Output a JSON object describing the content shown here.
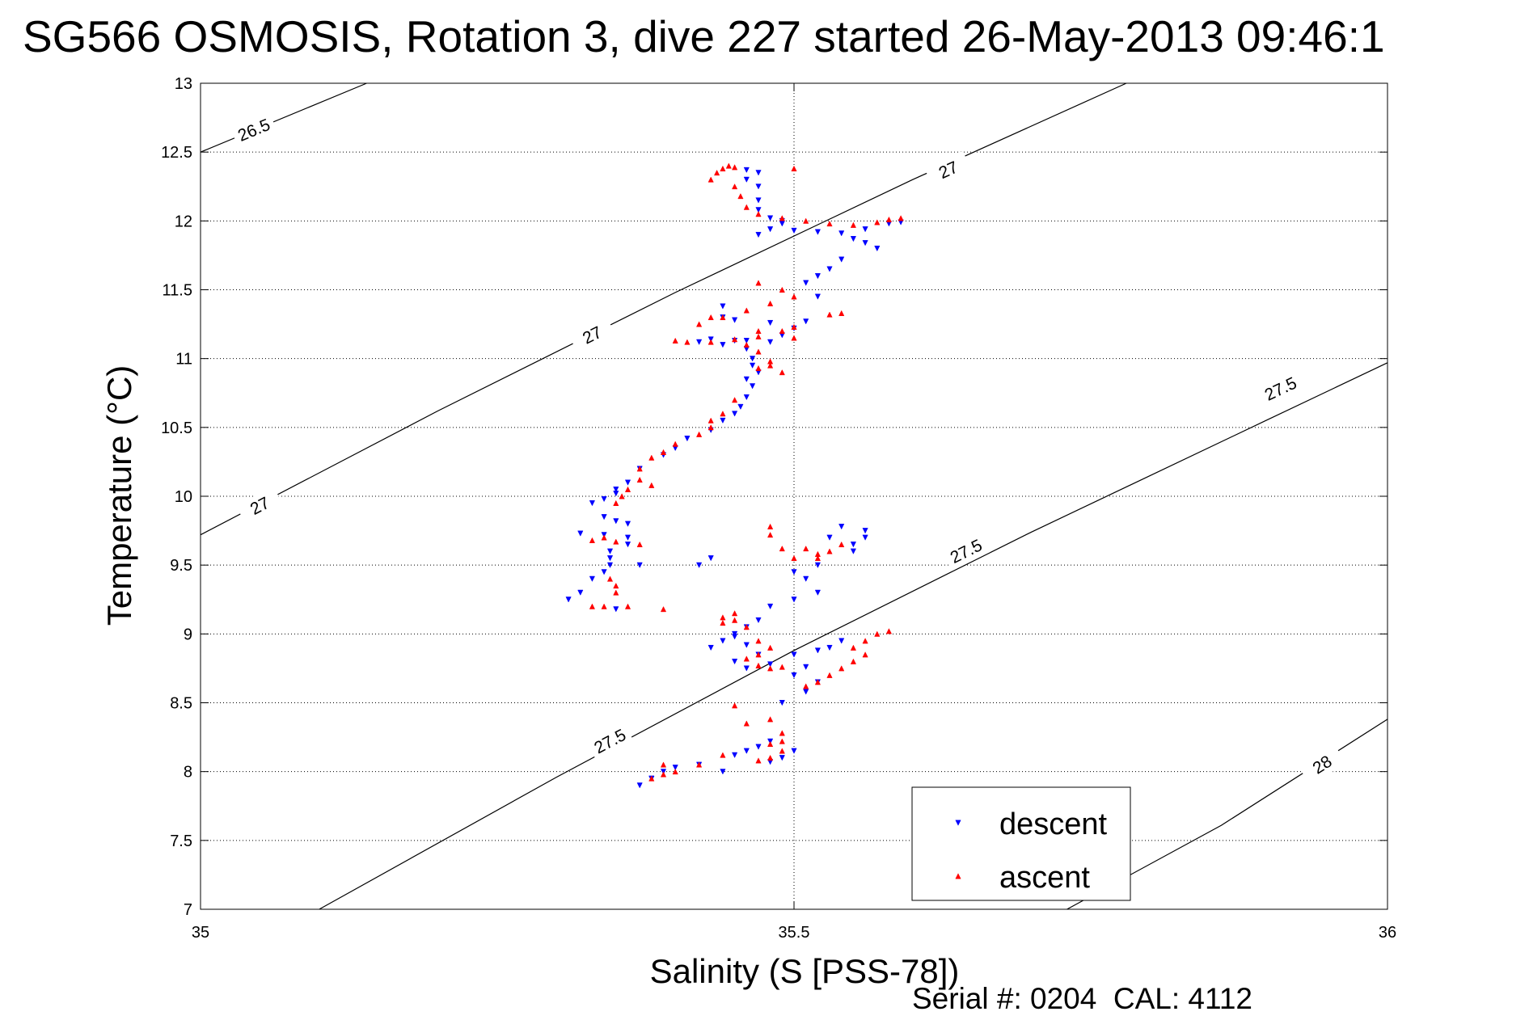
{
  "chart_data": {
    "type": "scatter",
    "title": "SG566 OSMOSIS, Rotation 3, dive 227 started 26-May-2013 09:46:1",
    "xlabel": "Salinity (S [PSS-78])",
    "ylabel": "Temperature (°C)",
    "footer": "Serial #: 0204  CAL: 4112",
    "xlim": [
      35,
      36
    ],
    "ylim": [
      7,
      13
    ],
    "xticks": [
      "35",
      "35.5",
      "36"
    ],
    "yticks": [
      "7",
      "7.5",
      "8",
      "8.5",
      "9",
      "9.5",
      "10",
      "10.5",
      "11",
      "11.5",
      "12",
      "12.5",
      "13"
    ],
    "grid": true,
    "legend_position": "bottom-right",
    "colors": {
      "descent": "#0000ff",
      "ascent": "#ff0000",
      "contour": "#000000",
      "grid": "#000000"
    },
    "isopycnals": [
      {
        "label": "26.5",
        "points": [
          [
            35,
            12.5
          ],
          [
            35.14,
            13
          ]
        ],
        "labels_at": [
          [
            35.045,
            12.66
          ]
        ]
      },
      {
        "label": "27",
        "points": [
          [
            35,
            9.72
          ],
          [
            35.2,
            10.62
          ],
          [
            35.4,
            11.48
          ],
          [
            35.6,
            12.3
          ],
          [
            35.78,
            13
          ]
        ],
        "labels_at": [
          [
            35.05,
            9.93
          ],
          [
            35.33,
            11.17
          ],
          [
            35.63,
            12.37
          ]
        ]
      },
      {
        "label": "27.5",
        "points": [
          [
            35.1,
            7
          ],
          [
            35.3,
            7.96
          ],
          [
            35.5,
            8.88
          ],
          [
            35.7,
            9.74
          ],
          [
            35.9,
            10.56
          ],
          [
            36,
            10.97
          ]
        ],
        "labels_at": [
          [
            35.345,
            8.22
          ],
          [
            35.645,
            9.6
          ],
          [
            35.91,
            10.78
          ]
        ]
      },
      {
        "label": "28",
        "points": [
          [
            35.73,
            7
          ],
          [
            35.86,
            7.61
          ],
          [
            36,
            8.38
          ]
        ],
        "labels_at": [
          [
            35.945,
            8.05
          ]
        ]
      }
    ],
    "series": [
      {
        "name": "descent",
        "marker": "down-triangle",
        "points": [
          [
            35.46,
            12.37
          ],
          [
            35.47,
            12.35
          ],
          [
            35.46,
            12.3
          ],
          [
            35.47,
            12.25
          ],
          [
            35.47,
            12.15
          ],
          [
            35.47,
            12.08
          ],
          [
            35.48,
            12.02
          ],
          [
            35.49,
            12.0
          ],
          [
            35.49,
            11.98
          ],
          [
            35.47,
            11.9
          ],
          [
            35.48,
            11.94
          ],
          [
            35.5,
            11.93
          ],
          [
            35.52,
            11.92
          ],
          [
            35.54,
            11.91
          ],
          [
            35.56,
            11.94
          ],
          [
            35.58,
            11.98
          ],
          [
            35.59,
            11.99
          ],
          [
            35.55,
            11.87
          ],
          [
            35.56,
            11.84
          ],
          [
            35.57,
            11.8
          ],
          [
            35.54,
            11.72
          ],
          [
            35.53,
            11.65
          ],
          [
            35.52,
            11.6
          ],
          [
            35.51,
            11.55
          ],
          [
            35.52,
            11.45
          ],
          [
            35.44,
            11.38
          ],
          [
            35.44,
            11.3
          ],
          [
            35.45,
            11.28
          ],
          [
            35.48,
            11.26
          ],
          [
            35.51,
            11.27
          ],
          [
            35.5,
            11.22
          ],
          [
            35.49,
            11.17
          ],
          [
            35.48,
            11.12
          ],
          [
            35.46,
            11.13
          ],
          [
            35.43,
            11.14
          ],
          [
            35.42,
            11.12
          ],
          [
            35.44,
            11.1
          ],
          [
            35.45,
            11.13
          ],
          [
            35.46,
            11.07
          ],
          [
            35.465,
            11.0
          ],
          [
            35.465,
            10.95
          ],
          [
            35.47,
            10.9
          ],
          [
            35.46,
            10.85
          ],
          [
            35.465,
            10.8
          ],
          [
            35.46,
            10.72
          ],
          [
            35.455,
            10.65
          ],
          [
            35.45,
            10.6
          ],
          [
            35.44,
            10.55
          ],
          [
            35.43,
            10.48
          ],
          [
            35.41,
            10.42
          ],
          [
            35.4,
            10.35
          ],
          [
            35.39,
            10.3
          ],
          [
            35.37,
            10.2
          ],
          [
            35.36,
            10.1
          ],
          [
            35.35,
            10.05
          ],
          [
            35.35,
            10.02
          ],
          [
            35.34,
            9.98
          ],
          [
            35.33,
            9.95
          ],
          [
            35.34,
            9.85
          ],
          [
            35.35,
            9.82
          ],
          [
            35.36,
            9.8
          ],
          [
            35.36,
            9.7
          ],
          [
            35.36,
            9.65
          ],
          [
            35.34,
            9.72
          ],
          [
            35.32,
            9.73
          ],
          [
            35.345,
            9.6
          ],
          [
            35.345,
            9.5
          ],
          [
            35.345,
            9.55
          ],
          [
            35.34,
            9.45
          ],
          [
            35.33,
            9.4
          ],
          [
            35.32,
            9.3
          ],
          [
            35.31,
            9.25
          ],
          [
            35.35,
            9.18
          ],
          [
            35.37,
            9.5
          ],
          [
            35.42,
            9.5
          ],
          [
            35.43,
            9.55
          ],
          [
            35.5,
            9.45
          ],
          [
            35.51,
            9.4
          ],
          [
            35.52,
            9.5
          ],
          [
            35.55,
            9.6
          ],
          [
            35.53,
            9.7
          ],
          [
            35.54,
            9.78
          ],
          [
            35.56,
            9.75
          ],
          [
            35.56,
            9.7
          ],
          [
            35.55,
            9.65
          ],
          [
            35.52,
            9.3
          ],
          [
            35.5,
            9.25
          ],
          [
            35.48,
            9.2
          ],
          [
            35.47,
            9.1
          ],
          [
            35.46,
            9.05
          ],
          [
            35.45,
            8.98
          ],
          [
            35.44,
            8.95
          ],
          [
            35.43,
            8.9
          ],
          [
            35.45,
            9.0
          ],
          [
            35.46,
            8.92
          ],
          [
            35.47,
            8.85
          ],
          [
            35.45,
            8.8
          ],
          [
            35.46,
            8.75
          ],
          [
            35.48,
            8.78
          ],
          [
            35.51,
            8.76
          ],
          [
            35.5,
            8.85
          ],
          [
            35.52,
            8.88
          ],
          [
            35.53,
            8.9
          ],
          [
            35.54,
            8.95
          ],
          [
            35.51,
            8.58
          ],
          [
            35.52,
            8.65
          ],
          [
            35.5,
            8.7
          ],
          [
            35.49,
            8.5
          ],
          [
            35.47,
            8.18
          ],
          [
            35.48,
            8.22
          ],
          [
            35.46,
            8.15
          ],
          [
            35.45,
            8.12
          ],
          [
            35.5,
            8.15
          ],
          [
            35.49,
            8.1
          ],
          [
            35.48,
            8.07
          ],
          [
            35.44,
            8.0
          ],
          [
            35.42,
            8.05
          ],
          [
            35.4,
            8.03
          ],
          [
            35.39,
            8.0
          ],
          [
            35.38,
            7.95
          ],
          [
            35.37,
            7.9
          ],
          [
            35.38,
            7.95
          ]
        ]
      },
      {
        "name": "ascent",
        "marker": "up-triangle",
        "points": [
          [
            35.44,
            12.38
          ],
          [
            35.445,
            12.4
          ],
          [
            35.45,
            12.39
          ],
          [
            35.435,
            12.35
          ],
          [
            35.43,
            12.3
          ],
          [
            35.45,
            12.25
          ],
          [
            35.455,
            12.18
          ],
          [
            35.46,
            12.1
          ],
          [
            35.47,
            12.05
          ],
          [
            35.49,
            12.02
          ],
          [
            35.51,
            12.0
          ],
          [
            35.53,
            11.98
          ],
          [
            35.55,
            11.97
          ],
          [
            35.57,
            11.99
          ],
          [
            35.58,
            12.01
          ],
          [
            35.59,
            12.02
          ],
          [
            35.5,
            12.38
          ],
          [
            35.47,
            11.55
          ],
          [
            35.49,
            11.5
          ],
          [
            35.5,
            11.45
          ],
          [
            35.48,
            11.4
          ],
          [
            35.46,
            11.35
          ],
          [
            35.44,
            11.3
          ],
          [
            35.43,
            11.3
          ],
          [
            35.42,
            11.25
          ],
          [
            35.4,
            11.13
          ],
          [
            35.41,
            11.12
          ],
          [
            35.43,
            11.12
          ],
          [
            35.45,
            11.14
          ],
          [
            35.47,
            11.16
          ],
          [
            35.49,
            11.2
          ],
          [
            35.5,
            11.23
          ],
          [
            35.47,
            11.2
          ],
          [
            35.46,
            11.1
          ],
          [
            35.47,
            11.05
          ],
          [
            35.48,
            10.98
          ],
          [
            35.47,
            10.93
          ],
          [
            35.48,
            10.95
          ],
          [
            35.49,
            10.9
          ],
          [
            35.5,
            11.15
          ],
          [
            35.53,
            11.32
          ],
          [
            35.54,
            11.33
          ],
          [
            35.45,
            10.7
          ],
          [
            35.44,
            10.6
          ],
          [
            35.43,
            10.55
          ],
          [
            35.43,
            10.5
          ],
          [
            35.42,
            10.45
          ],
          [
            35.4,
            10.38
          ],
          [
            35.39,
            10.32
          ],
          [
            35.38,
            10.28
          ],
          [
            35.37,
            10.2
          ],
          [
            35.37,
            10.12
          ],
          [
            35.38,
            10.08
          ],
          [
            35.36,
            10.05
          ],
          [
            35.355,
            10.0
          ],
          [
            35.35,
            9.95
          ],
          [
            35.34,
            9.7
          ],
          [
            35.33,
            9.68
          ],
          [
            35.35,
            9.67
          ],
          [
            35.37,
            9.65
          ],
          [
            35.345,
            9.4
          ],
          [
            35.35,
            9.35
          ],
          [
            35.35,
            9.3
          ],
          [
            35.34,
            9.2
          ],
          [
            35.33,
            9.2
          ],
          [
            35.36,
            9.2
          ],
          [
            35.39,
            9.18
          ],
          [
            35.48,
            9.78
          ],
          [
            35.48,
            9.72
          ],
          [
            35.49,
            9.62
          ],
          [
            35.5,
            9.55
          ],
          [
            35.52,
            9.58
          ],
          [
            35.53,
            9.6
          ],
          [
            35.52,
            9.55
          ],
          [
            35.51,
            9.62
          ],
          [
            35.54,
            9.65
          ],
          [
            35.45,
            9.15
          ],
          [
            35.44,
            9.12
          ],
          [
            35.44,
            9.08
          ],
          [
            35.45,
            9.1
          ],
          [
            35.46,
            9.05
          ],
          [
            35.47,
            8.95
          ],
          [
            35.48,
            8.9
          ],
          [
            35.47,
            8.85
          ],
          [
            35.46,
            8.82
          ],
          [
            35.47,
            8.77
          ],
          [
            35.48,
            8.75
          ],
          [
            35.49,
            8.76
          ],
          [
            35.51,
            8.62
          ],
          [
            35.52,
            8.65
          ],
          [
            35.53,
            8.7
          ],
          [
            35.54,
            8.75
          ],
          [
            35.55,
            8.8
          ],
          [
            35.56,
            8.85
          ],
          [
            35.55,
            8.9
          ],
          [
            35.56,
            8.95
          ],
          [
            35.57,
            9.0
          ],
          [
            35.58,
            9.02
          ],
          [
            35.45,
            8.48
          ],
          [
            35.46,
            8.35
          ],
          [
            35.48,
            8.38
          ],
          [
            35.49,
            8.28
          ],
          [
            35.49,
            8.22
          ],
          [
            35.48,
            8.2
          ],
          [
            35.49,
            8.15
          ],
          [
            35.48,
            8.1
          ],
          [
            35.47,
            8.08
          ],
          [
            35.44,
            8.12
          ],
          [
            35.42,
            8.05
          ],
          [
            35.4,
            8.0
          ],
          [
            35.39,
            7.98
          ],
          [
            35.38,
            7.95
          ],
          [
            35.39,
            8.05
          ]
        ]
      }
    ]
  }
}
